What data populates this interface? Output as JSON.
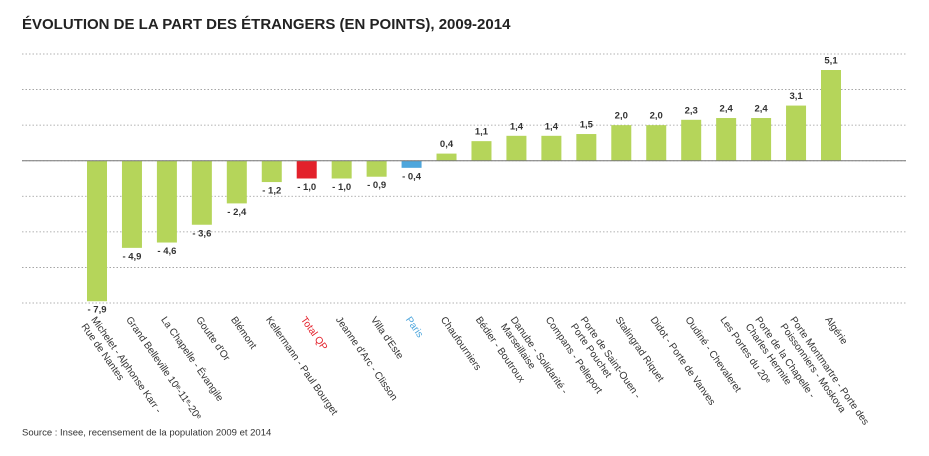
{
  "chart_data": {
    "type": "bar",
    "title": "ÉVOLUTION DE LA PART DES ÉTRANGERS (EN POINTS), 2009-2014",
    "source": "Source : Insee, recensement de la population 2009 et 2014",
    "categories": [
      [
        "Michelet - Alphonse Karr -",
        "Rue de Nantes"
      ],
      [
        "Grand Belleville 10ᵉ-11ᵉ-20ᵉ"
      ],
      [
        "La Chapelle - Évangile"
      ],
      [
        "Goutte d'Or"
      ],
      [
        "Blémont"
      ],
      [
        "Kellermann - Paul Bourget"
      ],
      [
        "Total QP"
      ],
      [
        "Jeanne d'Arc - Clisson"
      ],
      [
        "Villa d'Este"
      ],
      [
        "Paris"
      ],
      [
        "Chaufourniers"
      ],
      [
        "Bédier - Boutroux"
      ],
      [
        "Danube - Solidarité -",
        "Marseillaise"
      ],
      [
        "Compans - Pelleport"
      ],
      [
        "Porte de Saint-Ouen -",
        "Porte Pouchet"
      ],
      [
        "Stalingrad Riquet"
      ],
      [
        "Didot - Porte de Vanves"
      ],
      [
        "Oudiné - Chevaleret"
      ],
      [
        "Les Portes du 20ᵉ"
      ],
      [
        "Porte de la Chapelle -",
        "Charles Hermite"
      ],
      [
        "Porte Montmartre - Porte des",
        "Poissonniers - Moskova"
      ],
      [
        "Algérie"
      ]
    ],
    "values": [
      -7.9,
      -4.9,
      -4.6,
      -3.6,
      -2.4,
      -1.2,
      -1.0,
      -1.0,
      -0.9,
      -0.4,
      0.4,
      1.1,
      1.4,
      1.4,
      1.5,
      2.0,
      2.0,
      2.3,
      2.4,
      2.4,
      3.1,
      5.1
    ],
    "value_labels": [
      "- 7,9",
      "- 4,9",
      "- 4,6",
      "- 3,6",
      "- 2,4",
      "- 1,2",
      "- 1,0",
      "- 1,0",
      "- 0,9",
      "- 0,4",
      "0,4",
      "1,1",
      "1,4",
      "1,4",
      "1,5",
      "2,0",
      "2,0",
      "2,3",
      "2,4",
      "2,4",
      "3,1",
      "5,1"
    ],
    "color": "#b5d55a",
    "colors": [
      "#b5d55a",
      "#b5d55a",
      "#b5d55a",
      "#b5d55a",
      "#b5d55a",
      "#b5d55a",
      "#e3212b",
      "#b5d55a",
      "#b5d55a",
      "#4ea6dc",
      "#b5d55a",
      "#b5d55a",
      "#b5d55a",
      "#b5d55a",
      "#b5d55a",
      "#b5d55a",
      "#b5d55a",
      "#b5d55a",
      "#b5d55a",
      "#b5d55a",
      "#b5d55a",
      "#b5d55a"
    ],
    "ylim": [
      -8,
      6
    ],
    "yticks": [
      -8,
      -6,
      -4,
      -2,
      0,
      2,
      4,
      6
    ],
    "grid": true
  }
}
